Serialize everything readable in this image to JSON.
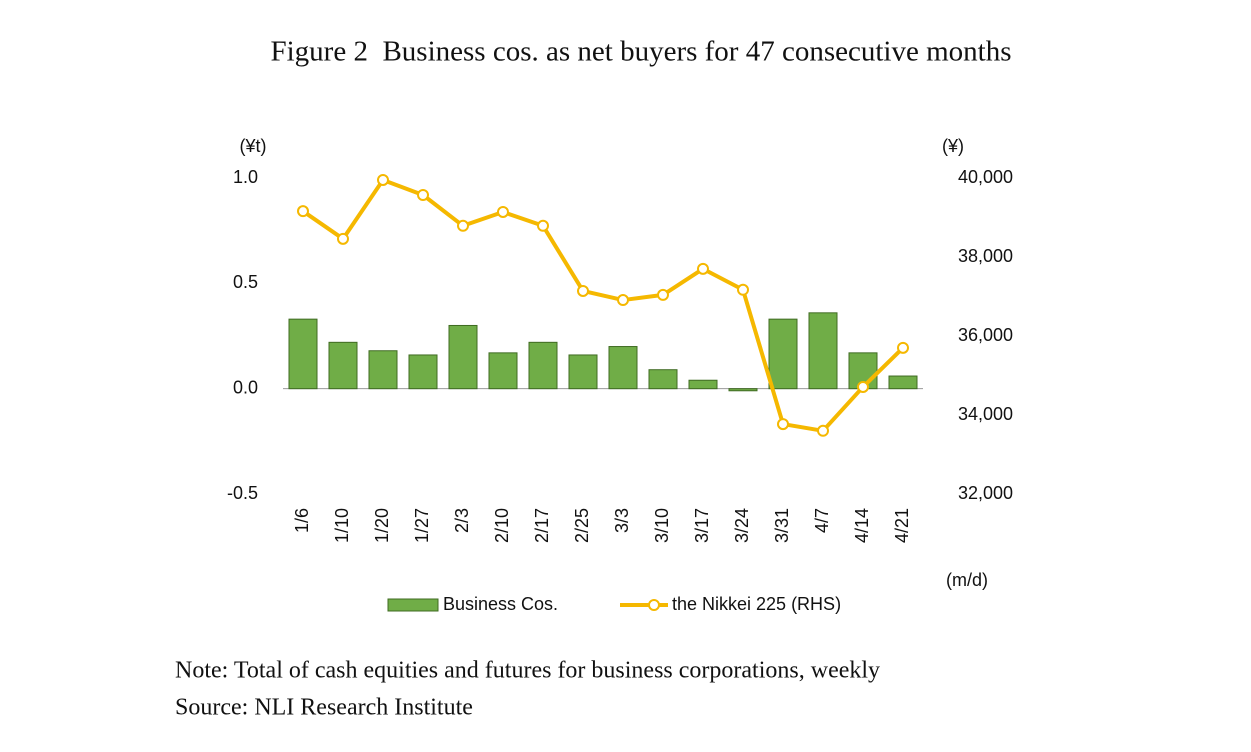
{
  "chart_data": {
    "type": "bar_line",
    "title": "Figure 2 Business cos. as net buyers for 47 consecutive months",
    "y_label": "(¥t)",
    "y2_label": "(¥)",
    "x_label": "(m/d)",
    "categories": [
      "1/6",
      "1/10",
      "1/20",
      "1/27",
      "2/3",
      "2/10",
      "2/17",
      "2/25",
      "3/3",
      "3/10",
      "3/17",
      "3/24",
      "3/31",
      "4/7",
      "4/14",
      "4/21"
    ],
    "series": [
      {
        "name": "Business Cos.",
        "type": "bar",
        "color": "#70ad47",
        "values": [
          0.33,
          0.22,
          0.18,
          0.16,
          0.3,
          0.17,
          0.22,
          0.16,
          0.2,
          0.09,
          0.04,
          -0.01,
          0.33,
          0.36,
          0.17,
          0.06
        ]
      },
      {
        "name": "the Nikkei 225 (RHS)",
        "type": "line",
        "axis": "y2",
        "color": "#f5b800",
        "values": [
          39160,
          38460,
          39950,
          39570,
          38790,
          39140,
          38790,
          37140,
          36910,
          37040,
          37700,
          37170,
          33770,
          33600,
          34710,
          35700
        ]
      }
    ],
    "ylim": [
      -0.5,
      1.0
    ],
    "yticks": [
      {
        "value": 1.0,
        "label": "1.0"
      },
      {
        "value": 0.5,
        "label": "0.5"
      },
      {
        "value": 0.0,
        "label": "0.0"
      },
      {
        "value": -0.5,
        "label": "-0.5"
      }
    ],
    "y2lim": [
      32000,
      40000
    ],
    "y2ticks": [
      {
        "value": 40000,
        "label": "40,000"
      },
      {
        "value": 38000,
        "label": "38,000"
      },
      {
        "value": 36000,
        "label": "36,000"
      },
      {
        "value": 34000,
        "label": "34,000"
      },
      {
        "value": 32000,
        "label": "32,000"
      }
    ],
    "note": "Note: Total of cash equities and futures for business corporations, weekly",
    "source": "Source: NLI Research Institute"
  }
}
